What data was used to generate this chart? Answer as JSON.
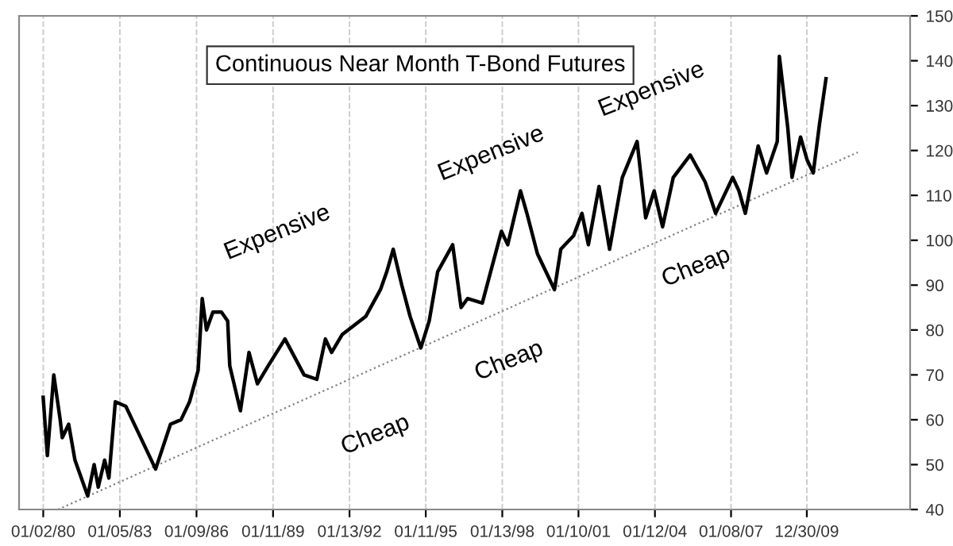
{
  "chart_data": {
    "type": "line",
    "title": "Continuous Near Month T-Bond Futures",
    "annotations": [
      "Expensive",
      "Expensive",
      "Expensive",
      "Cheap",
      "Cheap",
      "Cheap"
    ],
    "series": [
      {
        "color": "#000000",
        "x": [
          "1980-01",
          "1980-03",
          "1980-06",
          "1980-09",
          "1980-10",
          "1981-01",
          "1981-04",
          "1981-10",
          "1982-01",
          "1982-03",
          "1982-06",
          "1982-08",
          "1982-11",
          "1983-04",
          "1983-10",
          "1984-06",
          "1985-01",
          "1985-06",
          "1985-10",
          "1986-02",
          "1986-04",
          "1986-06",
          "1986-09",
          "1987-01",
          "1987-04",
          "1987-05",
          "1987-10",
          "1988-02",
          "1988-06",
          "1988-11",
          "1989-07",
          "1990-04",
          "1990-10",
          "1991-02",
          "1991-05",
          "1991-10",
          "1992-09",
          "1993-04",
          "1993-07",
          "1993-10",
          "1994-02",
          "1994-06",
          "1994-11",
          "1995-03",
          "1995-07",
          "1996-02",
          "1996-06",
          "1996-09",
          "1997-04",
          "1998-01",
          "1998-04",
          "1998-10",
          "1999-01",
          "1999-06",
          "2000-02",
          "2000-05",
          "2000-11",
          "2001-03",
          "2001-06",
          "2001-11",
          "2002-04",
          "2002-10",
          "2003-05",
          "2003-09",
          "2004-01",
          "2004-05",
          "2004-10",
          "2005-06",
          "2006-01",
          "2006-06",
          "2007-02",
          "2007-05",
          "2007-08",
          "2008-02",
          "2008-06",
          "2008-11",
          "2008-12",
          "2009-04",
          "2009-06",
          "2009-10",
          "2010-01",
          "2010-04",
          "2010-07",
          "2010-10"
        ],
        "values": [
          65,
          52,
          70,
          60,
          56,
          59,
          51,
          43,
          50,
          45,
          51,
          47,
          64,
          63,
          57,
          49,
          59,
          60,
          64,
          71,
          87,
          80,
          84,
          84,
          82,
          72,
          62,
          75,
          68,
          72,
          78,
          70,
          69,
          78,
          75,
          79,
          83,
          89,
          93,
          98,
          90,
          83,
          76,
          82,
          93,
          99,
          85,
          87,
          86,
          102,
          99,
          111,
          106,
          97,
          89,
          98,
          101,
          106,
          99,
          112,
          98,
          114,
          122,
          105,
          111,
          103,
          114,
          119,
          113,
          106,
          114,
          111,
          106,
          121,
          115,
          122,
          141,
          125,
          114,
          123,
          118,
          115,
          126,
          136
        ]
      },
      {
        "type": "line",
        "color": "#808080",
        "line_style": "dotted",
        "x": [
          "1980-08",
          "2012-01"
        ],
        "values": [
          40,
          119.6
        ]
      }
    ],
    "xlim": [
      "1979-01-20",
      "2014-01-20"
    ],
    "xticks": [
      {
        "value": "1980-01-02",
        "label": "01/02/80"
      },
      {
        "value": "1983-01-05",
        "label": "01/05/83"
      },
      {
        "value": "1986-01-09",
        "label": "01/09/86"
      },
      {
        "value": "1989-01-11",
        "label": "01/11/89"
      },
      {
        "value": "1992-01-13",
        "label": "01/13/92"
      },
      {
        "value": "1995-01-11",
        "label": "01/11/95"
      },
      {
        "value": "1998-01-13",
        "label": "01/13/98"
      },
      {
        "value": "2001-01-10",
        "label": "01/10/01"
      },
      {
        "value": "2004-01-12",
        "label": "01/12/04"
      },
      {
        "value": "2007-01-08",
        "label": "01/08/07"
      },
      {
        "value": "2009-12-30",
        "label": "12/30/09"
      }
    ],
    "ylim": [
      40,
      150
    ],
    "yticks": [
      40,
      50,
      60,
      70,
      80,
      90,
      100,
      110,
      120,
      130,
      140,
      150
    ],
    "grid": "x",
    "legend": false
  }
}
